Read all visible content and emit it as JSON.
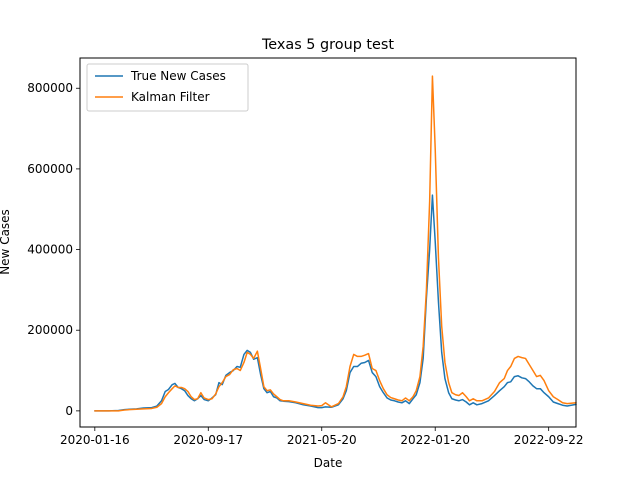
{
  "chart_data": {
    "type": "line",
    "title": "Texas 5 group test",
    "xlabel": "Date",
    "ylabel": "New Cases",
    "x_axis": {
      "type": "date",
      "range": [
        "2019-12-15",
        "2022-11-20"
      ],
      "ticks": [
        "2020-01-16",
        "2020-09-17",
        "2021-05-20",
        "2022-01-20",
        "2022-09-22"
      ]
    },
    "y_axis": {
      "range": [
        -40000,
        875000
      ],
      "ticks": [
        0,
        200000,
        400000,
        600000,
        800000
      ]
    },
    "grid": false,
    "legend_position": "top-left",
    "series": [
      {
        "name": "True New Cases",
        "color": "#1f77b4",
        "points": [
          [
            "2020-01-16",
            0
          ],
          [
            "2020-02-15",
            0
          ],
          [
            "2020-03-07",
            1000
          ],
          [
            "2020-03-20",
            3000
          ],
          [
            "2020-03-30",
            4000
          ],
          [
            "2020-04-15",
            5000
          ],
          [
            "2020-04-30",
            7000
          ],
          [
            "2020-05-18",
            8000
          ],
          [
            "2020-05-29",
            12000
          ],
          [
            "2020-06-08",
            25000
          ],
          [
            "2020-06-16",
            48000
          ],
          [
            "2020-06-23",
            53000
          ],
          [
            "2020-07-01",
            65000
          ],
          [
            "2020-07-07",
            68000
          ],
          [
            "2020-07-14",
            58000
          ],
          [
            "2020-07-21",
            55000
          ],
          [
            "2020-07-28",
            50000
          ],
          [
            "2020-08-04",
            38000
          ],
          [
            "2020-08-11",
            30000
          ],
          [
            "2020-08-18",
            25000
          ],
          [
            "2020-08-25",
            30000
          ],
          [
            "2020-09-01",
            38000
          ],
          [
            "2020-09-08",
            28000
          ],
          [
            "2020-09-17",
            25000
          ],
          [
            "2020-09-25",
            32000
          ],
          [
            "2020-10-03",
            40000
          ],
          [
            "2020-10-10",
            70000
          ],
          [
            "2020-10-17",
            65000
          ],
          [
            "2020-10-25",
            88000
          ],
          [
            "2020-11-02",
            95000
          ],
          [
            "2020-11-10",
            100000
          ],
          [
            "2020-11-18",
            110000
          ],
          [
            "2020-11-25",
            108000
          ],
          [
            "2020-12-03",
            140000
          ],
          [
            "2020-12-10",
            150000
          ],
          [
            "2020-12-17",
            145000
          ],
          [
            "2020-12-24",
            128000
          ],
          [
            "2021-01-01",
            132000
          ],
          [
            "2021-01-08",
            90000
          ],
          [
            "2021-01-15",
            55000
          ],
          [
            "2021-01-22",
            45000
          ],
          [
            "2021-01-29",
            48000
          ],
          [
            "2021-02-05",
            35000
          ],
          [
            "2021-02-12",
            32000
          ],
          [
            "2021-02-19",
            25000
          ],
          [
            "2021-02-26",
            24000
          ],
          [
            "2021-03-10",
            23000
          ],
          [
            "2021-03-25",
            20000
          ],
          [
            "2021-04-10",
            15000
          ],
          [
            "2021-04-26",
            12000
          ],
          [
            "2021-05-12",
            8000
          ],
          [
            "2021-05-20",
            8000
          ],
          [
            "2021-05-28",
            10000
          ],
          [
            "2021-06-10",
            9000
          ],
          [
            "2021-06-25",
            15000
          ],
          [
            "2021-07-05",
            30000
          ],
          [
            "2021-07-12",
            50000
          ],
          [
            "2021-07-20",
            95000
          ],
          [
            "2021-07-28",
            110000
          ],
          [
            "2021-08-05",
            110000
          ],
          [
            "2021-08-13",
            118000
          ],
          [
            "2021-08-21",
            120000
          ],
          [
            "2021-08-29",
            125000
          ],
          [
            "2021-09-06",
            95000
          ],
          [
            "2021-09-14",
            85000
          ],
          [
            "2021-09-22",
            60000
          ],
          [
            "2021-09-30",
            45000
          ],
          [
            "2021-10-08",
            32000
          ],
          [
            "2021-10-16",
            27000
          ],
          [
            "2021-10-24",
            25000
          ],
          [
            "2021-11-01",
            22000
          ],
          [
            "2021-11-09",
            20000
          ],
          [
            "2021-11-17",
            25000
          ],
          [
            "2021-11-25",
            18000
          ],
          [
            "2021-12-03",
            30000
          ],
          [
            "2021-12-10",
            40000
          ],
          [
            "2021-12-18",
            70000
          ],
          [
            "2021-12-25",
            130000
          ],
          [
            "2022-01-01",
            280000
          ],
          [
            "2022-01-08",
            400000
          ],
          [
            "2022-01-14",
            535000
          ],
          [
            "2022-01-20",
            420000
          ],
          [
            "2022-01-27",
            270000
          ],
          [
            "2022-02-03",
            145000
          ],
          [
            "2022-02-10",
            80000
          ],
          [
            "2022-02-18",
            45000
          ],
          [
            "2022-02-25",
            30000
          ],
          [
            "2022-03-05",
            27000
          ],
          [
            "2022-03-12",
            25000
          ],
          [
            "2022-03-20",
            28000
          ],
          [
            "2022-03-28",
            22000
          ],
          [
            "2022-04-04",
            15000
          ],
          [
            "2022-04-12",
            20000
          ],
          [
            "2022-04-20",
            15000
          ],
          [
            "2022-05-01",
            18000
          ],
          [
            "2022-05-15",
            25000
          ],
          [
            "2022-05-28",
            38000
          ],
          [
            "2022-06-08",
            50000
          ],
          [
            "2022-06-18",
            60000
          ],
          [
            "2022-06-25",
            70000
          ],
          [
            "2022-07-02",
            72000
          ],
          [
            "2022-07-10",
            85000
          ],
          [
            "2022-07-18",
            87000
          ],
          [
            "2022-07-26",
            82000
          ],
          [
            "2022-08-03",
            80000
          ],
          [
            "2022-08-11",
            72000
          ],
          [
            "2022-08-19",
            62000
          ],
          [
            "2022-08-27",
            55000
          ],
          [
            "2022-09-04",
            55000
          ],
          [
            "2022-09-12",
            45000
          ],
          [
            "2022-09-22",
            35000
          ],
          [
            "2022-10-02",
            22000
          ],
          [
            "2022-10-12",
            18000
          ],
          [
            "2022-10-22",
            14000
          ],
          [
            "2022-11-01",
            12000
          ],
          [
            "2022-11-20",
            16000
          ]
        ]
      },
      {
        "name": "Kalman Filter",
        "color": "#ff7f0e",
        "points": [
          [
            "2020-01-16",
            0
          ],
          [
            "2020-02-15",
            0
          ],
          [
            "2020-03-07",
            0
          ],
          [
            "2020-03-20",
            2000
          ],
          [
            "2020-03-30",
            3000
          ],
          [
            "2020-04-15",
            4000
          ],
          [
            "2020-04-30",
            5000
          ],
          [
            "2020-05-18",
            6000
          ],
          [
            "2020-05-29",
            9000
          ],
          [
            "2020-06-08",
            18000
          ],
          [
            "2020-06-16",
            35000
          ],
          [
            "2020-06-23",
            45000
          ],
          [
            "2020-07-01",
            55000
          ],
          [
            "2020-07-07",
            62000
          ],
          [
            "2020-07-14",
            58000
          ],
          [
            "2020-07-21",
            58000
          ],
          [
            "2020-07-28",
            55000
          ],
          [
            "2020-08-04",
            48000
          ],
          [
            "2020-08-11",
            35000
          ],
          [
            "2020-08-18",
            28000
          ],
          [
            "2020-08-25",
            30000
          ],
          [
            "2020-09-01",
            45000
          ],
          [
            "2020-09-08",
            32000
          ],
          [
            "2020-09-17",
            28000
          ],
          [
            "2020-09-25",
            30000
          ],
          [
            "2020-10-03",
            42000
          ],
          [
            "2020-10-10",
            60000
          ],
          [
            "2020-10-17",
            70000
          ],
          [
            "2020-10-25",
            85000
          ],
          [
            "2020-11-02",
            90000
          ],
          [
            "2020-11-10",
            102000
          ],
          [
            "2020-11-18",
            105000
          ],
          [
            "2020-11-25",
            100000
          ],
          [
            "2020-12-03",
            120000
          ],
          [
            "2020-12-10",
            145000
          ],
          [
            "2020-12-17",
            140000
          ],
          [
            "2020-12-24",
            130000
          ],
          [
            "2021-01-01",
            148000
          ],
          [
            "2021-01-08",
            105000
          ],
          [
            "2021-01-15",
            60000
          ],
          [
            "2021-01-22",
            50000
          ],
          [
            "2021-01-29",
            52000
          ],
          [
            "2021-02-05",
            42000
          ],
          [
            "2021-02-12",
            35000
          ],
          [
            "2021-02-19",
            28000
          ],
          [
            "2021-02-26",
            25000
          ],
          [
            "2021-03-10",
            25000
          ],
          [
            "2021-03-25",
            22000
          ],
          [
            "2021-04-10",
            18000
          ],
          [
            "2021-04-26",
            14000
          ],
          [
            "2021-05-12",
            12000
          ],
          [
            "2021-05-20",
            13000
          ],
          [
            "2021-05-28",
            20000
          ],
          [
            "2021-06-10",
            10000
          ],
          [
            "2021-06-25",
            18000
          ],
          [
            "2021-07-05",
            35000
          ],
          [
            "2021-07-12",
            60000
          ],
          [
            "2021-07-20",
            110000
          ],
          [
            "2021-07-28",
            140000
          ],
          [
            "2021-08-05",
            135000
          ],
          [
            "2021-08-13",
            135000
          ],
          [
            "2021-08-21",
            138000
          ],
          [
            "2021-08-29",
            142000
          ],
          [
            "2021-09-06",
            105000
          ],
          [
            "2021-09-14",
            100000
          ],
          [
            "2021-09-22",
            75000
          ],
          [
            "2021-09-30",
            55000
          ],
          [
            "2021-10-08",
            40000
          ],
          [
            "2021-10-16",
            33000
          ],
          [
            "2021-10-24",
            30000
          ],
          [
            "2021-11-01",
            27000
          ],
          [
            "2021-11-09",
            25000
          ],
          [
            "2021-11-17",
            32000
          ],
          [
            "2021-11-25",
            25000
          ],
          [
            "2021-12-03",
            35000
          ],
          [
            "2021-12-10",
            50000
          ],
          [
            "2021-12-18",
            85000
          ],
          [
            "2021-12-25",
            160000
          ],
          [
            "2022-01-01",
            300000
          ],
          [
            "2022-01-08",
            520000
          ],
          [
            "2022-01-14",
            830000
          ],
          [
            "2022-01-20",
            650000
          ],
          [
            "2022-01-27",
            380000
          ],
          [
            "2022-02-03",
            210000
          ],
          [
            "2022-02-10",
            120000
          ],
          [
            "2022-02-18",
            70000
          ],
          [
            "2022-02-25",
            45000
          ],
          [
            "2022-03-05",
            40000
          ],
          [
            "2022-03-12",
            38000
          ],
          [
            "2022-03-20",
            45000
          ],
          [
            "2022-03-28",
            35000
          ],
          [
            "2022-04-04",
            25000
          ],
          [
            "2022-04-12",
            30000
          ],
          [
            "2022-04-20",
            25000
          ],
          [
            "2022-05-01",
            25000
          ],
          [
            "2022-05-15",
            32000
          ],
          [
            "2022-05-28",
            48000
          ],
          [
            "2022-06-08",
            70000
          ],
          [
            "2022-06-18",
            80000
          ],
          [
            "2022-06-25",
            100000
          ],
          [
            "2022-07-02",
            110000
          ],
          [
            "2022-07-10",
            130000
          ],
          [
            "2022-07-18",
            135000
          ],
          [
            "2022-07-26",
            132000
          ],
          [
            "2022-08-03",
            130000
          ],
          [
            "2022-08-11",
            115000
          ],
          [
            "2022-08-19",
            100000
          ],
          [
            "2022-08-27",
            85000
          ],
          [
            "2022-09-04",
            88000
          ],
          [
            "2022-09-12",
            75000
          ],
          [
            "2022-09-22",
            50000
          ],
          [
            "2022-10-02",
            35000
          ],
          [
            "2022-10-12",
            28000
          ],
          [
            "2022-10-22",
            20000
          ],
          [
            "2022-11-01",
            18000
          ],
          [
            "2022-11-20",
            20000
          ]
        ]
      }
    ]
  }
}
